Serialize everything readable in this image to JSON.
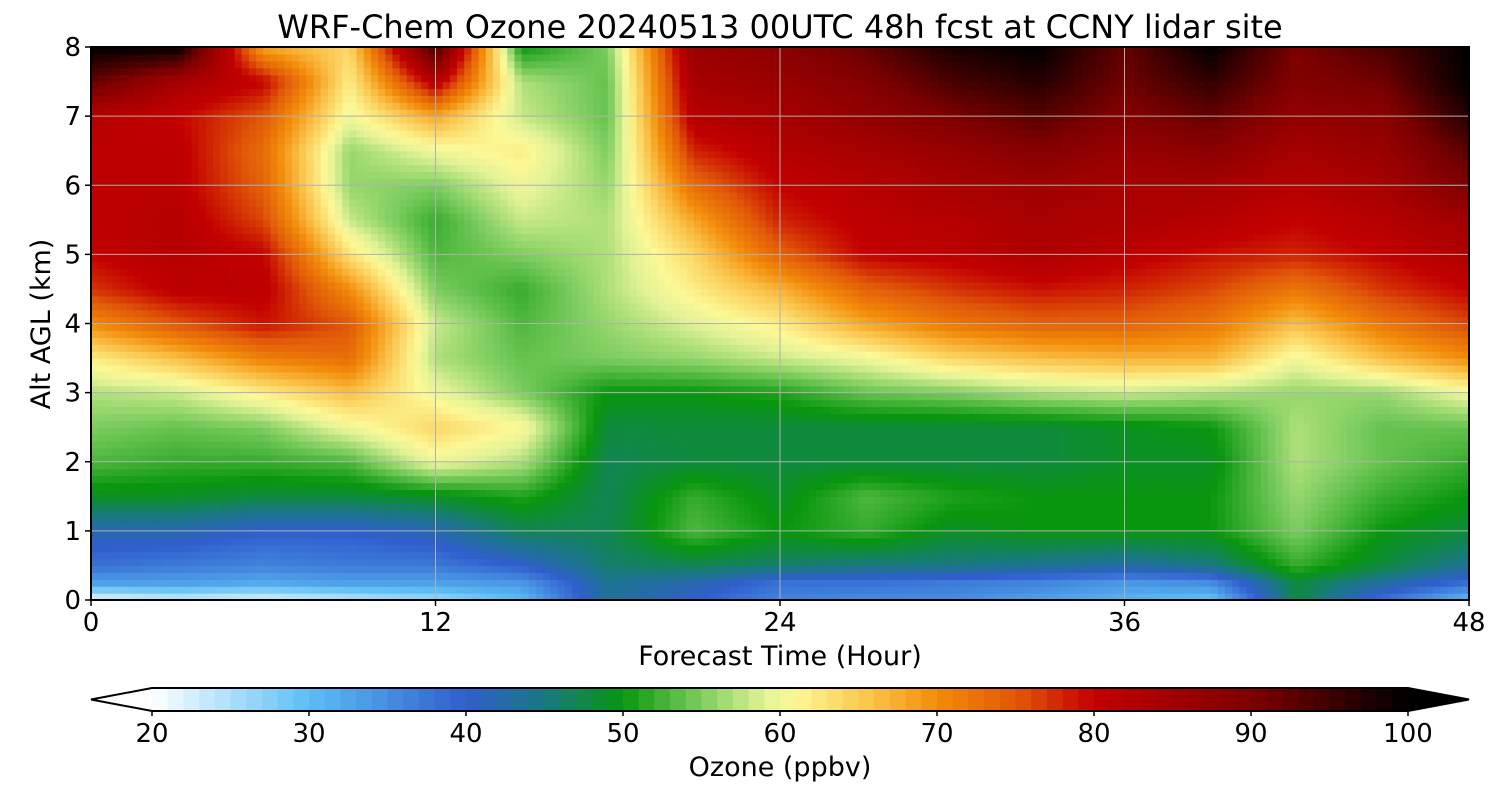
{
  "chart_data": {
    "type": "heatmap",
    "title": "WRF-Chem Ozone  20240513 00UTC 48h fcst at CCNY lidar site",
    "xlabel": "Forecast Time (Hour)",
    "ylabel": "Alt AGL (km)",
    "xlim": [
      0,
      48
    ],
    "ylim": [
      0,
      8
    ],
    "x_ticks": [
      0,
      12,
      24,
      36,
      48
    ],
    "y_ticks": [
      0,
      1,
      2,
      3,
      4,
      5,
      6,
      7,
      8
    ],
    "grid": true,
    "x": [
      0,
      3,
      6,
      9,
      12,
      15,
      18,
      21,
      24,
      27,
      30,
      33,
      36,
      39,
      42,
      45,
      48
    ],
    "y": [
      0,
      0.25,
      0.5,
      1,
      1.5,
      2,
      2.5,
      3,
      3.5,
      4,
      4.5,
      5,
      5.5,
      6,
      6.5,
      7,
      7.5,
      8
    ],
    "z": [
      [
        21,
        23,
        22,
        24,
        26,
        30,
        44,
        40,
        36,
        35,
        35,
        33,
        31,
        29,
        48,
        38,
        30
      ],
      [
        33,
        33,
        32,
        33,
        33,
        34,
        44,
        42,
        38,
        38,
        37,
        36,
        34,
        35,
        48,
        43,
        38
      ],
      [
        38,
        37,
        36,
        37,
        37,
        40,
        46,
        47,
        46,
        45,
        45,
        44,
        43,
        45,
        52,
        48,
        44
      ],
      [
        42,
        42,
        40,
        40,
        42,
        47,
        47,
        53,
        50,
        52,
        49,
        50,
        50,
        50,
        55,
        50,
        48
      ],
      [
        49,
        49,
        48,
        48,
        49,
        51,
        47,
        52,
        49,
        53,
        51,
        50,
        50,
        50,
        56,
        52,
        50
      ],
      [
        53,
        52,
        52,
        53,
        60,
        57,
        47,
        48,
        48,
        48,
        48,
        48,
        49,
        49,
        57,
        54,
        52
      ],
      [
        55,
        54,
        55,
        60,
        64,
        61,
        48,
        48,
        48,
        48,
        48,
        48,
        49,
        50,
        57,
        54,
        54
      ],
      [
        57,
        58,
        62,
        66,
        60,
        55,
        50,
        50,
        51,
        54,
        55,
        57,
        58,
        57,
        56,
        56,
        60
      ],
      [
        62,
        66,
        71,
        73,
        57,
        54,
        55,
        56,
        58,
        60,
        64,
        66,
        67,
        67,
        60,
        66,
        70
      ],
      [
        70,
        75,
        79,
        75,
        58,
        53,
        56,
        59,
        62,
        68,
        72,
        74,
        74,
        72,
        66,
        72,
        76
      ],
      [
        77,
        81,
        81,
        70,
        55,
        52,
        57,
        62,
        67,
        74,
        77,
        79,
        78,
        76,
        72,
        77,
        80
      ],
      [
        80,
        82,
        80,
        63,
        53,
        55,
        57,
        64,
        74,
        80,
        81,
        83,
        81,
        79,
        78,
        80,
        83
      ],
      [
        81,
        82,
        76,
        58,
        52,
        58,
        57,
        68,
        78,
        81,
        82,
        84,
        83,
        82,
        80,
        82,
        85
      ],
      [
        81,
        81,
        74,
        56,
        55,
        60,
        56,
        73,
        80,
        82,
        84,
        85,
        84,
        84,
        82,
        84,
        90
      ],
      [
        81,
        81,
        73,
        56,
        60,
        62,
        55,
        78,
        82,
        84,
        86,
        89,
        86,
        88,
        84,
        86,
        93
      ],
      [
        82,
        80,
        75,
        60,
        68,
        58,
        54,
        82,
        84,
        87,
        90,
        93,
        89,
        92,
        87,
        88,
        97
      ],
      [
        92,
        84,
        80,
        62,
        82,
        57,
        54,
        84,
        86,
        89,
        94,
        97,
        91,
        96,
        89,
        91,
        100
      ],
      [
        100,
        100,
        68,
        64,
        95,
        50,
        55,
        86,
        88,
        92,
        98,
        100,
        92,
        100,
        90,
        94,
        100
      ]
    ],
    "colorbar": {
      "label": "Ozone  (ppbv)",
      "min": 20,
      "max": 100,
      "ticks": [
        "20",
        "30",
        "40",
        "50",
        "60",
        "70",
        "80",
        "90",
        "100"
      ],
      "extend": "both"
    }
  }
}
